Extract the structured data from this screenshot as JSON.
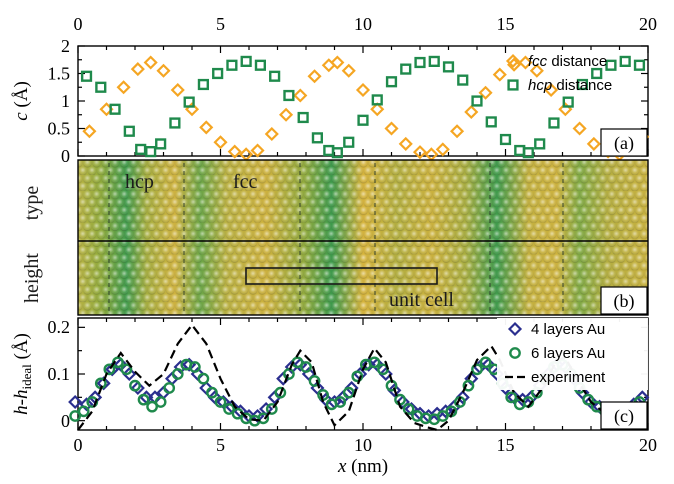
{
  "colors": {
    "fcc": "#f5a623",
    "hcp": "#1f8a4c",
    "au4": "#2b2f8f",
    "au6": "#1f8a4c",
    "experiment": "#000000"
  },
  "chart_data": [
    {
      "type": "scatter",
      "panel": "(a)",
      "ylabel_var": "c",
      "ylabel_unit": "(Å)",
      "xlim": [
        0,
        20
      ],
      "ylim": [
        0,
        2
      ],
      "x_ticks": [
        "0",
        "5",
        "10",
        "15",
        "20"
      ],
      "y_ticks": [
        "0",
        "0.5",
        "1",
        "1.5",
        "2"
      ],
      "legend_position": "top-right",
      "series": [
        {
          "legend_italic": "fcc",
          "legend_rest": " distance",
          "marker": "diamond",
          "color_key": "fcc",
          "points": [
            [
              -0.2,
              0.1
            ],
            [
              0.4,
              0.45
            ],
            [
              1.0,
              0.85
            ],
            [
              1.6,
              1.25
            ],
            [
              2.1,
              1.58
            ],
            [
              2.55,
              1.7
            ],
            [
              3.0,
              1.55
            ],
            [
              3.5,
              1.2
            ],
            [
              4.0,
              0.85
            ],
            [
              4.5,
              0.52
            ],
            [
              5.0,
              0.25
            ],
            [
              5.5,
              0.08
            ],
            [
              5.9,
              0.03
            ],
            [
              6.3,
              0.1
            ],
            [
              6.8,
              0.4
            ],
            [
              7.3,
              0.75
            ],
            [
              7.8,
              1.1
            ],
            [
              8.3,
              1.45
            ],
            [
              8.8,
              1.65
            ],
            [
              9.1,
              1.7
            ],
            [
              9.5,
              1.55
            ],
            [
              10.0,
              1.2
            ],
            [
              10.5,
              0.85
            ],
            [
              11.0,
              0.5
            ],
            [
              11.5,
              0.22
            ],
            [
              12.0,
              0.07
            ],
            [
              12.4,
              0.03
            ],
            [
              12.8,
              0.12
            ],
            [
              13.3,
              0.45
            ],
            [
              13.8,
              0.8
            ],
            [
              14.3,
              1.15
            ],
            [
              14.8,
              1.48
            ],
            [
              15.3,
              1.66
            ],
            [
              15.7,
              1.7
            ],
            [
              16.1,
              1.55
            ],
            [
              16.6,
              1.2
            ],
            [
              17.1,
              0.85
            ],
            [
              17.6,
              0.5
            ],
            [
              18.1,
              0.22
            ],
            [
              18.6,
              0.08
            ],
            [
              19.0,
              0.03
            ],
            [
              19.4,
              0.12
            ],
            [
              19.8,
              0.35
            ]
          ]
        },
        {
          "legend_italic": "hcp",
          "legend_rest": " distance",
          "marker": "square",
          "color_key": "hcp",
          "points": [
            [
              -0.2,
              1.5
            ],
            [
              0.3,
              1.45
            ],
            [
              0.8,
              1.25
            ],
            [
              1.3,
              0.85
            ],
            [
              1.8,
              0.45
            ],
            [
              2.2,
              0.12
            ],
            [
              2.55,
              0.08
            ],
            [
              2.9,
              0.22
            ],
            [
              3.4,
              0.6
            ],
            [
              3.9,
              0.98
            ],
            [
              4.4,
              1.3
            ],
            [
              4.9,
              1.5
            ],
            [
              5.4,
              1.65
            ],
            [
              5.9,
              1.72
            ],
            [
              6.4,
              1.65
            ],
            [
              6.9,
              1.45
            ],
            [
              7.4,
              1.1
            ],
            [
              7.9,
              0.7
            ],
            [
              8.4,
              0.33
            ],
            [
              8.8,
              0.1
            ],
            [
              9.1,
              0.06
            ],
            [
              9.5,
              0.25
            ],
            [
              10.0,
              0.65
            ],
            [
              10.5,
              1.02
            ],
            [
              11.0,
              1.35
            ],
            [
              11.5,
              1.58
            ],
            [
              12.0,
              1.7
            ],
            [
              12.5,
              1.72
            ],
            [
              13.0,
              1.62
            ],
            [
              13.5,
              1.38
            ],
            [
              14.0,
              1.0
            ],
            [
              14.5,
              0.62
            ],
            [
              15.0,
              0.3
            ],
            [
              15.5,
              0.1
            ],
            [
              15.8,
              0.06
            ],
            [
              16.2,
              0.22
            ],
            [
              16.7,
              0.6
            ],
            [
              17.2,
              0.98
            ],
            [
              17.7,
              1.3
            ],
            [
              18.2,
              1.5
            ],
            [
              18.7,
              1.65
            ],
            [
              19.2,
              1.72
            ],
            [
              19.7,
              1.65
            ]
          ]
        }
      ]
    },
    {
      "type": "image",
      "panel": "(b)",
      "labels": [
        "hcp",
        "fcc",
        "type",
        "height",
        "unit cell"
      ]
    },
    {
      "type": "scatter",
      "panel": "(c)",
      "ylabel_main": "h-h",
      "ylabel_sub": "ideal",
      "ylabel_unit": " (Å)",
      "xlabel_var": "x",
      "xlabel_unit": " (nm)",
      "xlim": [
        0,
        20
      ],
      "ylim": [
        -0.02,
        0.22
      ],
      "x_ticks": [
        "0",
        "5",
        "10",
        "15",
        "20"
      ],
      "y_ticks": [
        "0",
        "0.1",
        "0.2"
      ],
      "legend_position": "top-right",
      "series": [
        {
          "name": "4 layers Au",
          "marker": "diamond",
          "color_key": "au4",
          "points": [
            [
              -0.1,
              0.04
            ],
            [
              0.3,
              0.035
            ],
            [
              0.6,
              0.05
            ],
            [
              0.9,
              0.08
            ],
            [
              1.2,
              0.11
            ],
            [
              1.5,
              0.12
            ],
            [
              1.8,
              0.1
            ],
            [
              2.1,
              0.07
            ],
            [
              2.4,
              0.05
            ],
            [
              2.7,
              0.05
            ],
            [
              3.0,
              0.06
            ],
            [
              3.3,
              0.09
            ],
            [
              3.6,
              0.115
            ],
            [
              3.9,
              0.12
            ],
            [
              4.2,
              0.1
            ],
            [
              4.5,
              0.07
            ],
            [
              4.8,
              0.05
            ],
            [
              5.1,
              0.04
            ],
            [
              5.4,
              0.03
            ],
            [
              5.7,
              0.02
            ],
            [
              6.0,
              0.01
            ],
            [
              6.3,
              0.01
            ],
            [
              6.6,
              0.025
            ],
            [
              6.9,
              0.05
            ],
            [
              7.2,
              0.09
            ],
            [
              7.5,
              0.115
            ],
            [
              7.8,
              0.12
            ],
            [
              8.1,
              0.1
            ],
            [
              8.4,
              0.07
            ],
            [
              8.7,
              0.045
            ],
            [
              9.0,
              0.04
            ],
            [
              9.3,
              0.05
            ],
            [
              9.6,
              0.07
            ],
            [
              9.9,
              0.1
            ],
            [
              10.2,
              0.12
            ],
            [
              10.5,
              0.12
            ],
            [
              10.8,
              0.1
            ],
            [
              11.1,
              0.065
            ],
            [
              11.4,
              0.04
            ],
            [
              11.7,
              0.025
            ],
            [
              12.0,
              0.015
            ],
            [
              12.3,
              0.01
            ],
            [
              12.6,
              0.015
            ],
            [
              12.9,
              0.02
            ],
            [
              13.2,
              0.03
            ],
            [
              13.5,
              0.05
            ],
            [
              13.8,
              0.09
            ],
            [
              14.1,
              0.115
            ],
            [
              14.4,
              0.12
            ],
            [
              14.7,
              0.1
            ],
            [
              15.0,
              0.07
            ],
            [
              15.3,
              0.05
            ],
            [
              15.6,
              0.045
            ],
            [
              15.9,
              0.05
            ],
            [
              16.2,
              0.075
            ],
            [
              16.5,
              0.1
            ],
            [
              16.8,
              0.12
            ],
            [
              17.1,
              0.115
            ],
            [
              17.4,
              0.09
            ],
            [
              17.7,
              0.06
            ],
            [
              18.0,
              0.04
            ],
            [
              18.3,
              0.03
            ],
            [
              18.6,
              0.025
            ],
            [
              18.9,
              0.02
            ],
            [
              19.2,
              0.025
            ],
            [
              19.5,
              0.035
            ],
            [
              19.8,
              0.05
            ]
          ]
        },
        {
          "name": "6 layers Au",
          "marker": "circle",
          "color_key": "au6",
          "points": [
            [
              -0.1,
              0.01
            ],
            [
              0.2,
              0.02
            ],
            [
              0.5,
              0.04
            ],
            [
              0.8,
              0.08
            ],
            [
              1.1,
              0.11
            ],
            [
              1.4,
              0.125
            ],
            [
              1.7,
              0.11
            ],
            [
              2.0,
              0.075
            ],
            [
              2.3,
              0.045
            ],
            [
              2.6,
              0.03
            ],
            [
              2.9,
              0.04
            ],
            [
              3.2,
              0.07
            ],
            [
              3.5,
              0.1
            ],
            [
              3.8,
              0.12
            ],
            [
              4.1,
              0.115
            ],
            [
              4.4,
              0.09
            ],
            [
              4.7,
              0.06
            ],
            [
              5.0,
              0.04
            ],
            [
              5.3,
              0.025
            ],
            [
              5.6,
              0.015
            ],
            [
              5.9,
              0.005
            ],
            [
              6.2,
              0.0
            ],
            [
              6.5,
              0.005
            ],
            [
              6.8,
              0.025
            ],
            [
              7.1,
              0.06
            ],
            [
              7.4,
              0.1
            ],
            [
              7.7,
              0.125
            ],
            [
              8.0,
              0.115
            ],
            [
              8.3,
              0.085
            ],
            [
              8.6,
              0.055
            ],
            [
              8.9,
              0.035
            ],
            [
              9.2,
              0.04
            ],
            [
              9.5,
              0.06
            ],
            [
              9.8,
              0.095
            ],
            [
              10.1,
              0.12
            ],
            [
              10.4,
              0.125
            ],
            [
              10.7,
              0.11
            ],
            [
              11.0,
              0.075
            ],
            [
              11.3,
              0.045
            ],
            [
              11.6,
              0.025
            ],
            [
              11.9,
              0.01
            ],
            [
              12.2,
              0.005
            ],
            [
              12.5,
              0.003
            ],
            [
              12.8,
              0.01
            ],
            [
              13.1,
              0.02
            ],
            [
              13.4,
              0.04
            ],
            [
              13.7,
              0.075
            ],
            [
              14.0,
              0.11
            ],
            [
              14.3,
              0.125
            ],
            [
              14.6,
              0.11
            ],
            [
              14.9,
              0.08
            ],
            [
              15.2,
              0.05
            ],
            [
              15.5,
              0.035
            ],
            [
              15.8,
              0.04
            ],
            [
              16.1,
              0.06
            ],
            [
              16.4,
              0.09
            ],
            [
              16.7,
              0.115
            ],
            [
              17.0,
              0.12
            ],
            [
              17.3,
              0.1
            ],
            [
              17.6,
              0.07
            ],
            [
              17.9,
              0.045
            ],
            [
              18.2,
              0.03
            ],
            [
              18.5,
              0.02
            ],
            [
              18.8,
              0.015
            ],
            [
              19.1,
              0.015
            ],
            [
              19.4,
              0.025
            ],
            [
              19.7,
              0.04
            ]
          ]
        },
        {
          "name": "experiment",
          "marker": "dashed-line",
          "color_key": "experiment",
          "points": [
            [
              0.0,
              -0.02
            ],
            [
              0.5,
              0.02
            ],
            [
              1.0,
              0.1
            ],
            [
              1.5,
              0.145
            ],
            [
              2.0,
              0.105
            ],
            [
              2.5,
              0.075
            ],
            [
              3.0,
              0.1
            ],
            [
              3.5,
              0.165
            ],
            [
              4.0,
              0.205
            ],
            [
              4.5,
              0.165
            ],
            [
              5.0,
              0.09
            ],
            [
              5.5,
              0.03
            ],
            [
              6.0,
              0.003
            ],
            [
              6.5,
              0.0
            ],
            [
              7.0,
              0.04
            ],
            [
              7.5,
              0.12
            ],
            [
              7.8,
              0.15
            ],
            [
              8.2,
              0.125
            ],
            [
              8.6,
              0.04
            ],
            [
              9.0,
              -0.01
            ],
            [
              9.5,
              0.02
            ],
            [
              10.0,
              0.11
            ],
            [
              10.4,
              0.155
            ],
            [
              10.8,
              0.125
            ],
            [
              11.3,
              0.03
            ],
            [
              11.8,
              -0.005
            ],
            [
              12.3,
              -0.015
            ],
            [
              12.6,
              -0.02
            ],
            [
              13.0,
              0.0
            ],
            [
              13.5,
              0.06
            ],
            [
              14.0,
              0.13
            ],
            [
              14.5,
              0.16
            ],
            [
              14.8,
              0.13
            ],
            [
              15.3,
              0.06
            ],
            [
              15.8,
              0.03
            ],
            [
              16.3,
              0.07
            ],
            [
              16.8,
              0.13
            ],
            [
              17.1,
              0.135
            ],
            [
              17.5,
              0.09
            ],
            [
              18.0,
              0.04
            ],
            [
              18.5,
              0.015
            ],
            [
              19.0,
              0.005
            ],
            [
              19.5,
              0.01
            ],
            [
              20.0,
              0.02
            ]
          ]
        }
      ]
    }
  ]
}
